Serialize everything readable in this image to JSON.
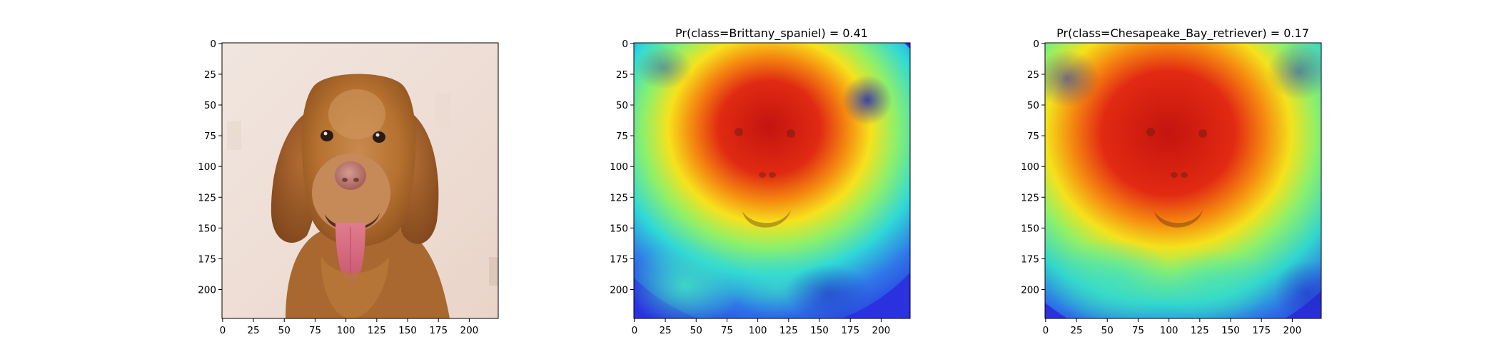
{
  "figure": {
    "panels": [
      {
        "id": "original",
        "title": "",
        "image": "dog-photo",
        "xticks": [
          "0",
          "25",
          "50",
          "75",
          "100",
          "125",
          "150",
          "175",
          "200"
        ],
        "yticks": [
          "0",
          "25",
          "50",
          "75",
          "100",
          "125",
          "150",
          "175",
          "200"
        ]
      },
      {
        "id": "cam-brittany",
        "title": "Pr(class=Brittany_spaniel) =  0.41",
        "image": "class-activation-heatmap",
        "xticks": [
          "0",
          "25",
          "50",
          "75",
          "100",
          "125",
          "150",
          "175",
          "200"
        ],
        "yticks": [
          "0",
          "25",
          "50",
          "75",
          "100",
          "125",
          "150",
          "175",
          "200"
        ]
      },
      {
        "id": "cam-chesapeake",
        "title": "Pr(class=Chesapeake_Bay_retriever) =  0.17",
        "image": "class-activation-heatmap",
        "xticks": [
          "0",
          "25",
          "50",
          "75",
          "100",
          "125",
          "150",
          "175",
          "200"
        ],
        "yticks": [
          "0",
          "25",
          "50",
          "75",
          "100",
          "125",
          "150",
          "175",
          "200"
        ]
      }
    ],
    "image_extent": [
      0,
      224
    ],
    "colors": {
      "heat_cold": "#2a35e6",
      "heat_hot": "#d81a14",
      "fur": "#b8733a",
      "background": "#efe3dc"
    }
  }
}
